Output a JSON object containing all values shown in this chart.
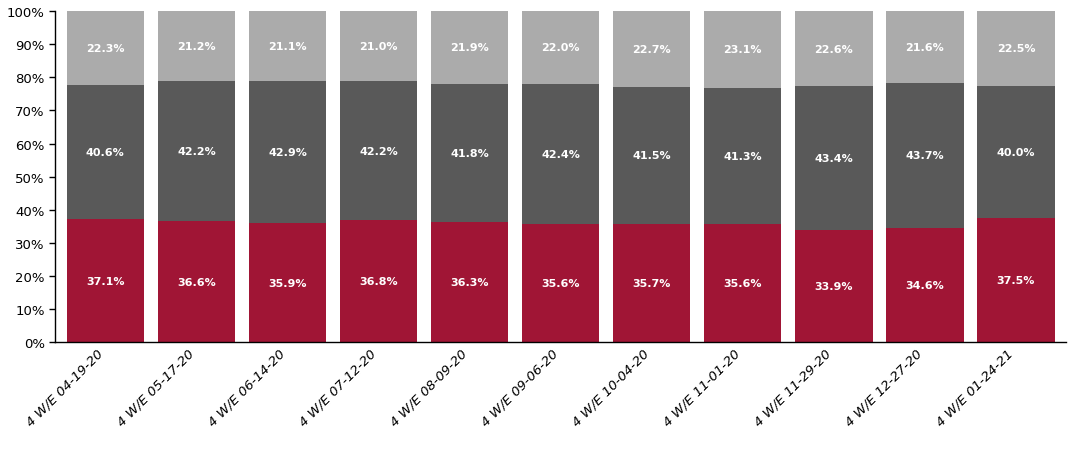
{
  "categories": [
    "4 W/E 04-19-20",
    "4 W/E 05-17-20",
    "4 W/E 06-14-20",
    "4 W/E 07-12-20",
    "4 W/E 08-09-20",
    "4 W/E 09-06-20",
    "4 W/E 10-04-20",
    "4 W/E 11-01-20",
    "4 W/E 11-29-20",
    "4 W/E 12-27-20",
    "4 W/E 01-24-21"
  ],
  "food_beverages": [
    37.1,
    36.6,
    35.9,
    36.8,
    36.3,
    35.6,
    35.7,
    35.6,
    33.9,
    34.6,
    37.5
  ],
  "health_beauty": [
    40.6,
    42.2,
    42.9,
    42.2,
    41.8,
    42.4,
    41.5,
    41.3,
    43.4,
    43.7,
    40.0
  ],
  "general_merchandise": [
    22.3,
    21.2,
    21.1,
    21.0,
    21.9,
    22.0,
    22.7,
    23.1,
    22.6,
    21.6,
    22.5
  ],
  "color_food": "#A01535",
  "color_health": "#595959",
  "color_general": "#ABABAB",
  "ylabel_ticks": [
    "0%",
    "10%",
    "20%",
    "30%",
    "40%",
    "50%",
    "60%",
    "70%",
    "80%",
    "90%",
    "100%"
  ],
  "label_fontsize": 8.0,
  "tick_fontsize": 9.5,
  "legend_fontsize": 10.5,
  "bar_width": 0.85
}
